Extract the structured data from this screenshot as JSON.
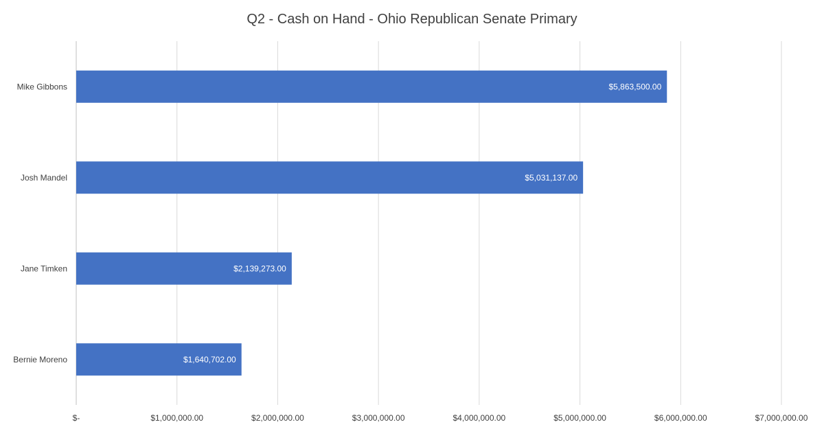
{
  "chart_data": {
    "type": "bar",
    "orientation": "horizontal",
    "title": "Q2 - Cash on Hand - Ohio Republican Senate Primary",
    "xlabel": "",
    "ylabel": "",
    "categories": [
      "Mike Gibbons",
      "Josh Mandel",
      "Jane Timken",
      "Bernie Moreno"
    ],
    "values": [
      5863500,
      5031137,
      2139273,
      1640702
    ],
    "data_labels": [
      "$5,863,500.00",
      "$5,031,137.00",
      "$2,139,273.00",
      "$1,640,702.00"
    ],
    "xlim": [
      0,
      7000000
    ],
    "ticks": [
      0,
      1000000,
      2000000,
      3000000,
      4000000,
      5000000,
      6000000,
      7000000
    ],
    "tick_labels": [
      "$-",
      "$1,000,000.00",
      "$2,000,000.00",
      "$3,000,000.00",
      "$4,000,000.00",
      "$5,000,000.00",
      "$6,000,000.00",
      "$7,000,000.00"
    ],
    "grid": true,
    "legend": "none",
    "bar_color": "#4472C4"
  }
}
